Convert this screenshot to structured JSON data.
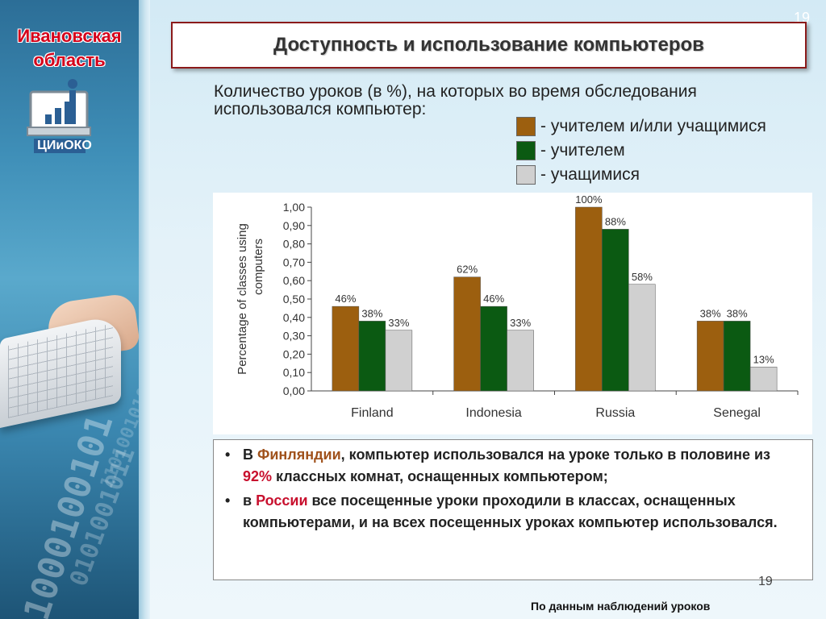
{
  "sidebar": {
    "region_line1": "Ивановская",
    "region_line2": "область",
    "logo_text": "ЦИиОКО"
  },
  "page_number": "19",
  "page_number_bottom": "19",
  "title": "Доступность и использование компьютеров",
  "subtitle": "Количество уроков (в %), на которых во время обследования использовался компьютер:",
  "legend": [
    {
      "label": "- учителем и/или учащимися",
      "color": "#9c5f0f"
    },
    {
      "label": "- учителем",
      "color": "#0b5a12"
    },
    {
      "label": "- учащимися",
      "color": "#d0d0d0"
    }
  ],
  "chart_data": {
    "type": "bar",
    "categories": [
      "Finland",
      "Indonesia",
      "Russia",
      "Senegal"
    ],
    "series": [
      {
        "values": [
          0.46,
          0.62,
          1.0,
          0.38
        ],
        "labels": [
          "46%",
          "62%",
          "100%",
          "38%"
        ],
        "color": "#9c5f0f"
      },
      {
        "values": [
          0.38,
          0.46,
          0.88,
          0.38
        ],
        "labels": [
          "38%",
          "46%",
          "88%",
          "38%"
        ],
        "color": "#0b5a12"
      },
      {
        "values": [
          0.33,
          0.33,
          0.58,
          0.13
        ],
        "labels": [
          "33%",
          "33%",
          "58%",
          "13%"
        ],
        "color": "#d0d0d0"
      }
    ],
    "ylabel_line1": "Percentage of classes using",
    "ylabel_line2": "computers",
    "yticks": [
      "0,00",
      "0,10",
      "0,20",
      "0,30",
      "0,40",
      "0,50",
      "0,60",
      "0,70",
      "0,80",
      "0,90",
      "1,00"
    ],
    "ylim": [
      0,
      1.0
    ],
    "grid": false
  },
  "notes": {
    "item1_part1": "В ",
    "item1_highlight1": "Финляндии",
    "item1_part2": ", компьютер использовался на уроке только в половине из ",
    "item1_highlight2": "92%",
    "item1_part3": " классных комнат, оснащенных компьютером;",
    "item2_part1": "в ",
    "item2_highlight1": "России",
    "item2_part2": " все посещенные уроки проходили в классах, оснащенных компьютерами, и на всех посещенных уроках компьютер использовался."
  },
  "footnote": "По данным наблюдений уроков"
}
